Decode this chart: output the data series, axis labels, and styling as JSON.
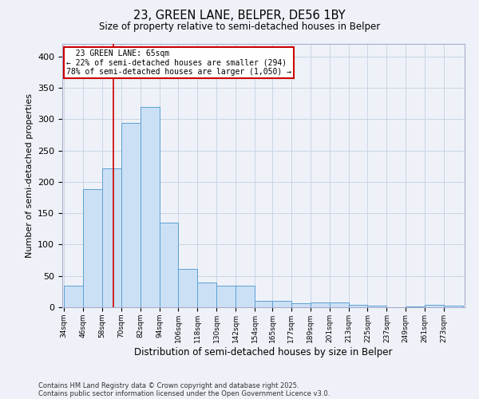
{
  "title1": "23, GREEN LANE, BELPER, DE56 1BY",
  "title2": "Size of property relative to semi-detached houses in Belper",
  "xlabel": "Distribution of semi-detached houses by size in Belper",
  "ylabel": "Number of semi-detached properties",
  "footnote1": "Contains HM Land Registry data © Crown copyright and database right 2025.",
  "footnote2": "Contains public sector information licensed under the Open Government Licence v3.0.",
  "property_size": 65,
  "property_label": "23 GREEN LANE: 65sqm",
  "smaller_pct": "22%",
  "smaller_count": 294,
  "larger_pct": "78%",
  "larger_count": 1050,
  "bar_color": "#cce0f5",
  "bar_edge_color": "#5a9fd4",
  "vline_color": "#cc0000",
  "annotation_box_color": "#cc0000",
  "bg_color": "#eef2f8",
  "grid_color": "#c8d4e4",
  "bins": [
    34,
    46,
    58,
    70,
    82,
    94,
    106,
    118,
    130,
    142,
    154,
    165,
    177,
    189,
    201,
    213,
    225,
    237,
    249,
    261,
    273
  ],
  "counts": [
    34,
    188,
    222,
    294,
    319,
    135,
    61,
    40,
    34,
    34,
    10,
    10,
    7,
    8,
    8,
    4,
    2,
    0,
    1,
    4,
    3
  ],
  "ylim": [
    0,
    420
  ],
  "yticks": [
    0,
    50,
    100,
    150,
    200,
    250,
    300,
    350,
    400
  ]
}
